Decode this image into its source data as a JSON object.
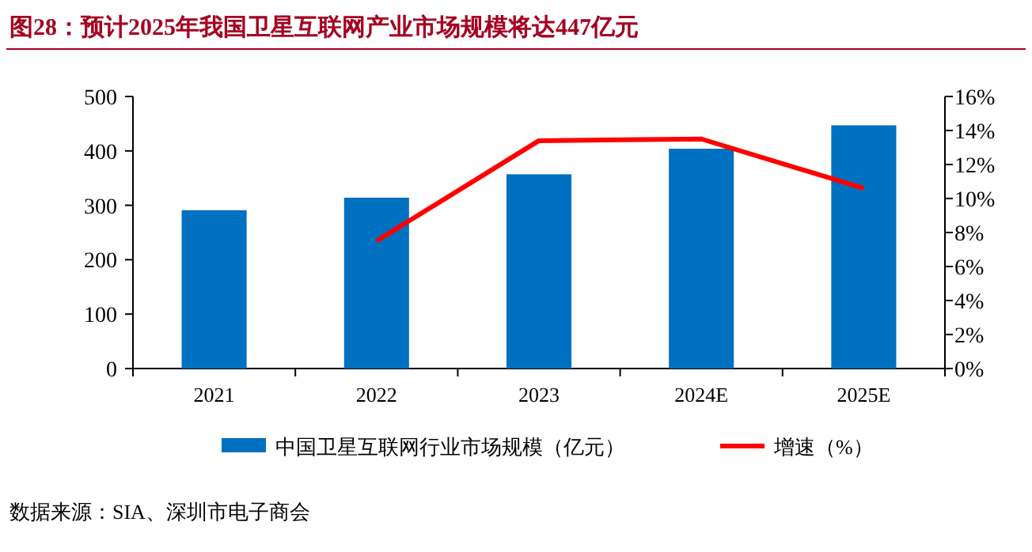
{
  "chart_data": {
    "type": "bar",
    "title": "图28：预计2025年我国卫星互联网产业市场规模将达447亿元",
    "categories": [
      "2021",
      "2022",
      "2023",
      "2024E",
      "2025E"
    ],
    "series": [
      {
        "name": "中国卫星互联网行业市场规模（亿元）",
        "color": "#0070c0",
        "values": [
          291,
          314,
          357,
          404,
          447
        ]
      },
      {
        "name": "增速（%）",
        "type": "line",
        "axis": "y2",
        "color": "#ff0000",
        "values": [
          null,
          7.5,
          13.4,
          13.5,
          10.6
        ]
      }
    ],
    "ylim": [
      0,
      500
    ],
    "yticks": [
      0,
      100,
      200,
      300,
      400,
      500
    ],
    "y2lim": [
      0,
      16
    ],
    "y2ticks": [
      {
        "value": 0,
        "label": "0%"
      },
      {
        "value": 2,
        "label": "2%"
      },
      {
        "value": 4,
        "label": "4%"
      },
      {
        "value": 6,
        "label": "6%"
      },
      {
        "value": 8,
        "label": "8%"
      },
      {
        "value": 10,
        "label": "10%"
      },
      {
        "value": 12,
        "label": "12%"
      },
      {
        "value": 14,
        "label": "14%"
      },
      {
        "value": 16,
        "label": "16%"
      }
    ],
    "legend": "bottom",
    "grid": false,
    "annotations": [
      "数据来源：SIA、深圳市电子商会"
    ]
  }
}
